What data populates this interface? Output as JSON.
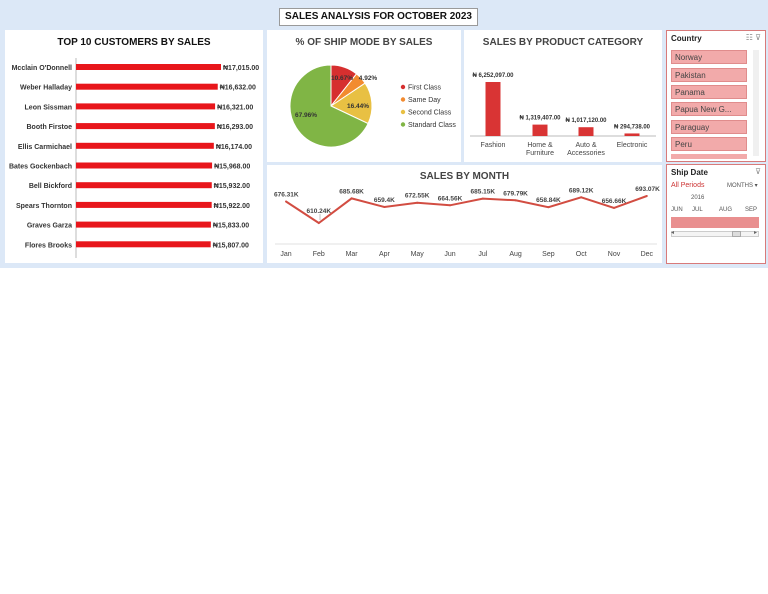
{
  "dashboard": {
    "title": "SALES ANALYSIS FOR OCTOBER 2023"
  },
  "panels": {
    "customers": "TOP 10 CUSTOMERS BY SALES",
    "ship": "% OF SHIP MODE BY SALES",
    "category": "SALES BY PRODUCT CATEGORY",
    "month": "SALES BY MONTH"
  },
  "colors": {
    "bar_red": "#e8161b",
    "cat_red": "#d93434",
    "line_red": "#d24d42",
    "slicer_fill": "#f2aaaa",
    "slicer_border": "#d87a7a"
  },
  "chart_data": [
    {
      "type": "bar",
      "title": "TOP 10 CUSTOMERS BY SALES",
      "orientation": "horizontal",
      "categories": [
        "Mcclain O'Donnell",
        "Weber Halladay",
        "Leon Sissman",
        "Booth Firstoe",
        "Ellis Carmichael",
        "Bates Gockenbach",
        "Bell Bickford",
        "Spears Thornton",
        "Graves Garza",
        "Flores Brooks"
      ],
      "values": [
        17015,
        16632,
        16321,
        16293,
        16174,
        15968,
        15932,
        15922,
        15833,
        15807
      ],
      "labels": [
        "₦17,015.00",
        "₦16,632.00",
        "₦16,321.00",
        "₦16,293.00",
        "₦16,174.00",
        "₦15,968.00",
        "₦15,932.00",
        "₦15,922.00",
        "₦15,833.00",
        "₦15,807.00"
      ]
    },
    {
      "type": "pie",
      "title": "% OF SHIP MODE BY SALES",
      "categories": [
        "First Class",
        "Same Day",
        "Second Class",
        "Standard Class"
      ],
      "values": [
        10.67,
        4.92,
        16.44,
        67.96
      ],
      "labels": [
        "10.67%",
        "4.92%",
        "16.44%",
        "67.96%"
      ],
      "colors": [
        "#d62f2f",
        "#f28b30",
        "#e8c043",
        "#80b545"
      ],
      "legend": "right"
    },
    {
      "type": "bar",
      "title": "SALES BY PRODUCT CATEGORY",
      "categories": [
        "Fashion",
        "Home & Furniture",
        "Auto & Accessories",
        "Electronic"
      ],
      "category_lines": [
        [
          "Fashion"
        ],
        [
          "Home &",
          "Furniture"
        ],
        [
          "Auto &",
          "Accessories"
        ],
        [
          "Electronic"
        ]
      ],
      "values": [
        6252097,
        1319407,
        1017120,
        294738
      ],
      "labels": [
        "₦ 6,252,097.00",
        "₦ 1,319,407.00",
        "₦ 1,017,120.00",
        "₦ 294,738.00"
      ]
    },
    {
      "type": "line",
      "title": "SALES BY MONTH",
      "categories": [
        "Jan",
        "Feb",
        "Mar",
        "Apr",
        "May",
        "Jun",
        "Jul",
        "Aug",
        "Sep",
        "Oct",
        "Nov",
        "Dec"
      ],
      "values": [
        676.31,
        610.24,
        685.68,
        659.4,
        672.55,
        664.56,
        685.15,
        679.79,
        658.84,
        689.12,
        656.66,
        693.07
      ],
      "labels": [
        "676.31K",
        "610.24K",
        "685.68K",
        "659.4K",
        "672.55K",
        "664.56K",
        "685.15K",
        "679.79K",
        "658.84K",
        "689.12K",
        "656.66K",
        "693.07K"
      ]
    }
  ],
  "country_slicer": {
    "title": "Country",
    "items": [
      "Norway",
      "Pakistan",
      "Panama",
      "Papua New G...",
      "Paraguay",
      "Peru"
    ]
  },
  "date_slicer": {
    "title": "Ship Date",
    "period": "All Periods",
    "unit": "MONTHS",
    "year": "2016",
    "months": [
      "JUN",
      "JUL",
      "AUG",
      "SEP"
    ]
  }
}
